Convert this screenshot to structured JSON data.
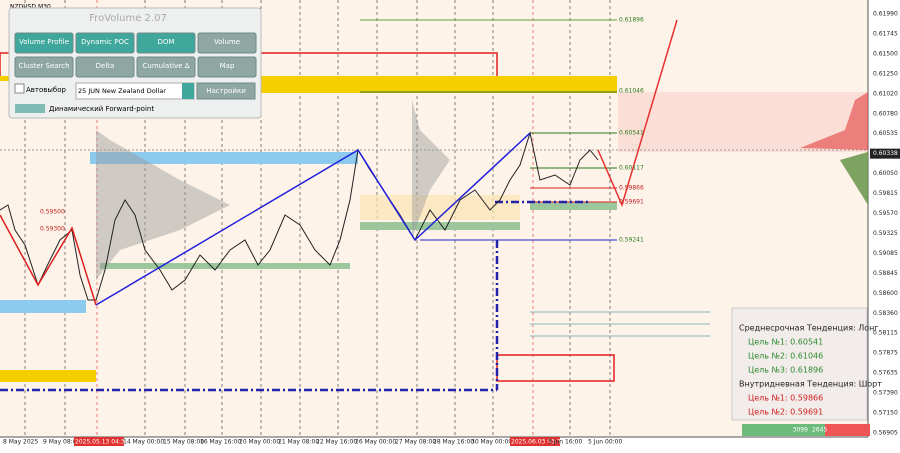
{
  "symbol": "NZDUSD,M30",
  "price_axis": [
    "0.61990",
    "0.61745",
    "0.61500",
    "0.61250",
    "0.61020",
    "0.60780",
    "0.60535",
    "0.60338",
    "0.60050",
    "0.59815",
    "0.59570",
    "0.59325",
    "0.59085",
    "0.58845",
    "0.58600",
    "0.58360",
    "0.58115",
    "0.57875",
    "0.57635",
    "0.57390",
    "0.57150",
    "0.56905"
  ],
  "time_axis": [
    "8 May 2025",
    "9 May 08:00",
    "2025.05.13 04:30",
    "14 May 00:00",
    "15 May 08:00",
    "16 May 16:00",
    "20 May 00:00",
    "21 May 08:00",
    "22 May 16:00",
    "26 May 00:00",
    "27 May 08:00",
    "28 May 16:00",
    "30 May 00:00",
    "2025.06.03 03:30",
    "3 Jun 16:00",
    "5 Jun 00:00"
  ],
  "levels": [
    "0.61896",
    "0.61046",
    "0.60541",
    "0.60117",
    "0.59866",
    "0.59691",
    "0.59241",
    "0.59500",
    "0.59300"
  ],
  "panel": {
    "title": "FroVolume 2.07",
    "buttons": [
      "Volume Profile",
      "Dynamic POC",
      "DOM",
      "Volume",
      "Cluster Search",
      "Delta",
      "Cumulative Δ",
      "Map"
    ],
    "autoselect": "Автовыбор",
    "instrument": "25 JUN New Zealand Dollar",
    "settings": "Настройки",
    "forward": "Динамический Forward-point"
  },
  "info": {
    "lines": [
      "Среднесрочная Тенденция: Лонг",
      "Цель №1: 0.60541",
      "Цель №2: 0.61046",
      "Цель №3: 0.61896",
      "Внутридневная Тенденция: Шорт",
      "Цель №1: 0.59866",
      "Цель №2: 0.59691"
    ],
    "buy": "3099",
    "sell": "2645"
  }
}
